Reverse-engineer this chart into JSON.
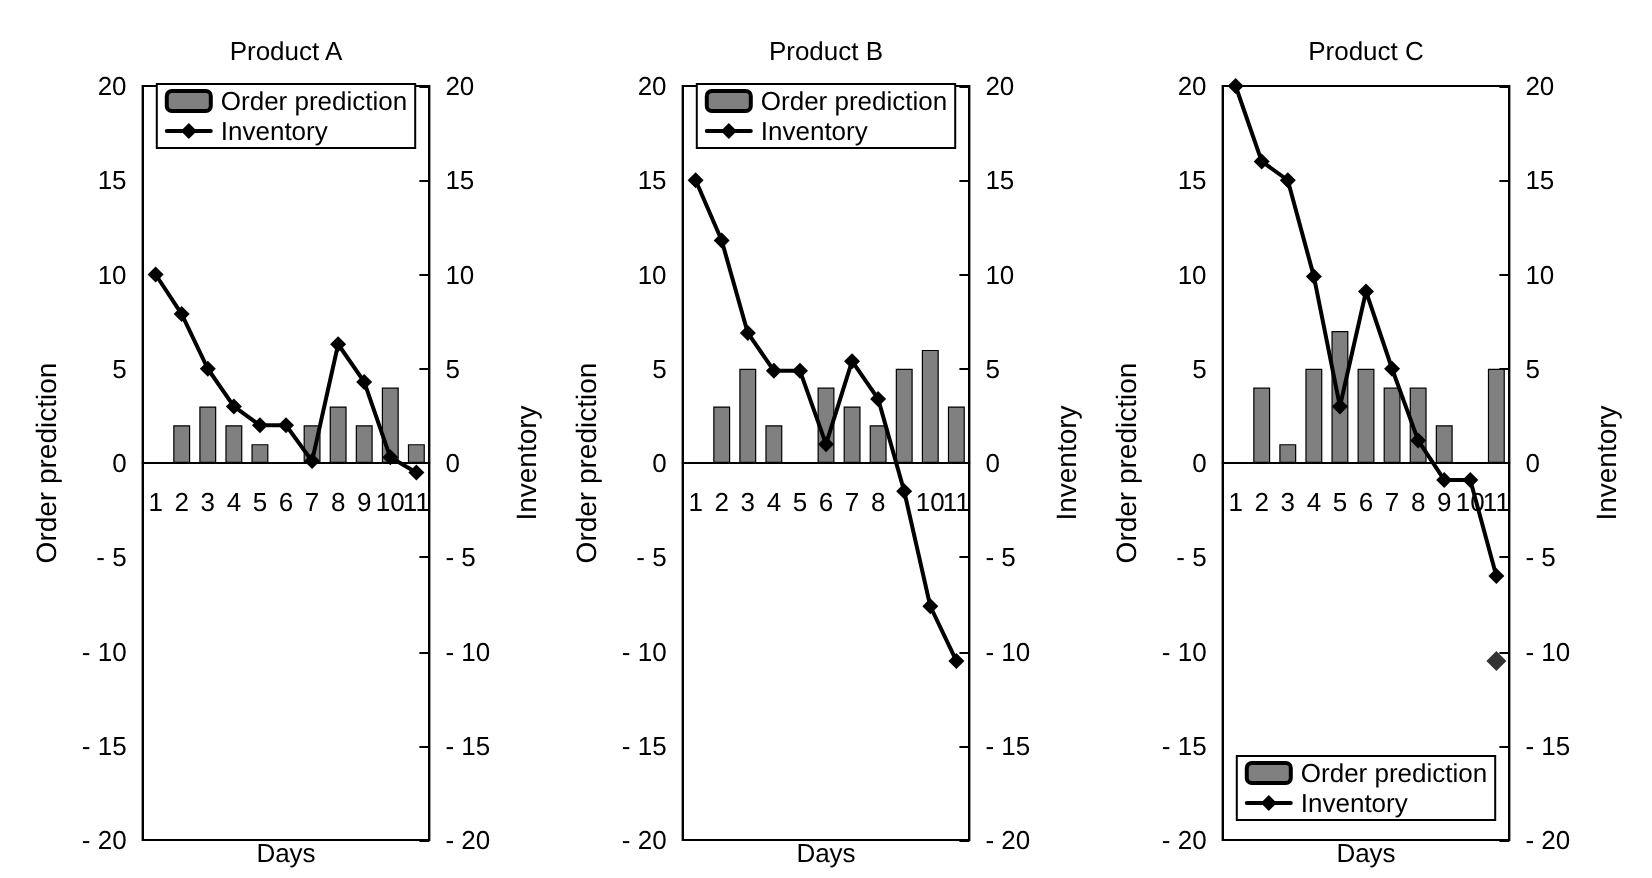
{
  "chart_data": [
    {
      "type": "bar",
      "title": "Product A",
      "xlabel": "Days",
      "ylabel": "Order prediction",
      "y2label": "Inventory",
      "categories": [
        "1",
        "2",
        "3",
        "4",
        "5",
        "6",
        "7",
        "8",
        "9",
        "10",
        "11"
      ],
      "series": [
        {
          "name": "Order prediction",
          "color": "#808080",
          "values": [
            null,
            2,
            3,
            2,
            1,
            null,
            2,
            3,
            2,
            4,
            1
          ]
        },
        {
          "name": "Inventory",
          "type": "line",
          "color": "#000000",
          "values": [
            10,
            7.9,
            5,
            3,
            2,
            2,
            0.1,
            6.3,
            4.3,
            0.3,
            -0.5
          ]
        }
      ],
      "ylim": [
        -20,
        20
      ],
      "yticks": [
        {
          "value": -20,
          "label": "- 20"
        },
        {
          "value": -15,
          "label": "- 15"
        },
        {
          "value": -10,
          "label": "- 10"
        },
        {
          "value": -5,
          "label": "- 5"
        },
        0,
        5,
        10,
        15,
        20
      ],
      "y2lim": [
        -20,
        20
      ],
      "y2ticks": [
        {
          "value": -20,
          "label": "- 20"
        },
        {
          "value": -15,
          "label": "- 15"
        },
        {
          "value": -10,
          "label": "- 10"
        },
        {
          "value": -5,
          "label": "- 5"
        },
        0,
        5,
        10,
        15,
        20
      ],
      "grid": false,
      "legend": "top",
      "marker": "diamond",
      "line_style": "solid"
    },
    {
      "type": "bar",
      "title": "Product B",
      "xlabel": "Days",
      "ylabel": "Order prediction",
      "y2label": "Inventory",
      "categories": [
        "1",
        "2",
        "3",
        "4",
        "5",
        "6",
        "7",
        "8",
        null,
        "10",
        "11"
      ],
      "series": [
        {
          "name": "Order prediction",
          "color": "#808080",
          "values": [
            null,
            3,
            5,
            2,
            null,
            4,
            3,
            2,
            5,
            6,
            3
          ]
        },
        {
          "name": "Inventory",
          "type": "line",
          "color": "#000000",
          "values": [
            15,
            11.8,
            6.9,
            4.9,
            4.9,
            1,
            5.4,
            3.4,
            -1.5,
            -7.6,
            -10.5
          ]
        }
      ],
      "ylim": [
        -20,
        20
      ],
      "yticks": [
        {
          "value": -20,
          "label": "- 20"
        },
        {
          "value": -15,
          "label": "- 15"
        },
        {
          "value": -10,
          "label": "- 10"
        },
        {
          "value": -5,
          "label": "- 5"
        },
        0,
        5,
        10,
        15,
        20
      ],
      "y2lim": [
        -20,
        20
      ],
      "y2ticks": [
        {
          "value": -20,
          "label": "- 20"
        },
        {
          "value": -15,
          "label": "- 15"
        },
        {
          "value": -10,
          "label": "- 10"
        },
        {
          "value": -5,
          "label": "- 5"
        },
        0,
        5,
        10,
        15,
        20
      ],
      "grid": false,
      "legend": "top",
      "marker": "diamond",
      "line_style": "solid"
    },
    {
      "type": "bar",
      "title": "Product C",
      "xlabel": "Days",
      "ylabel": "Order prediction",
      "y2label": "Inventory",
      "categories": [
        "1",
        "2",
        "3",
        "4",
        "5",
        "6",
        "7",
        "8",
        "9",
        "10",
        "11"
      ],
      "series": [
        {
          "name": "Order prediction",
          "color": "#808080",
          "values": [
            null,
            4,
            1,
            5,
            7,
            5,
            4,
            4,
            2,
            null,
            5
          ]
        },
        {
          "name": "Inventory",
          "type": "line",
          "color": "#000000",
          "values": [
            20,
            16,
            15,
            9.9,
            3,
            9.1,
            5,
            1.2,
            -0.9,
            -0.9,
            -6
          ]
        },
        {
          "type": "scatter",
          "color": "#000000",
          "x": [
            "11"
          ],
          "values": [
            -10.5
          ]
        }
      ],
      "ylim": [
        -20,
        20
      ],
      "yticks": [
        {
          "value": -20,
          "label": "- 20"
        },
        {
          "value": -15,
          "label": "- 15"
        },
        {
          "value": -10,
          "label": "- 10"
        },
        {
          "value": -5,
          "label": "- 5"
        },
        0,
        5,
        10,
        15,
        20
      ],
      "y2lim": [
        -20,
        20
      ],
      "y2ticks": [
        {
          "value": -20,
          "label": "- 20"
        },
        {
          "value": -15,
          "label": "- 15"
        },
        {
          "value": -10,
          "label": "- 10"
        },
        {
          "value": -5,
          "label": "- 5"
        },
        0,
        5,
        10,
        15,
        20
      ],
      "grid": false,
      "legend": "bottom",
      "marker": "diamond",
      "line_style": "solid"
    }
  ]
}
